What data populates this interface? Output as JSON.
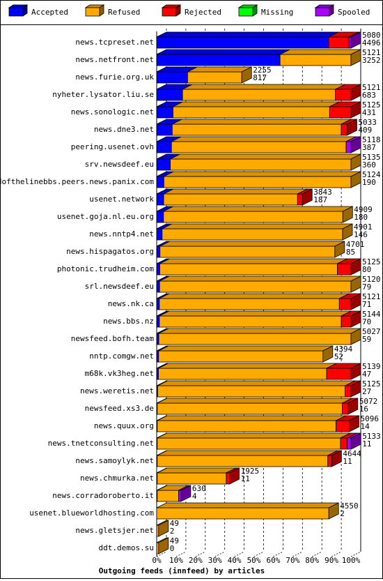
{
  "chart_data": {
    "type": "bar",
    "orientation": "horizontal",
    "stacked": true,
    "title": "Outgoing feeds (innfeed) by articles",
    "legend": [
      {
        "name": "Accepted",
        "color": "#0000ff"
      },
      {
        "name": "Refused",
        "color": "#ffaa00"
      },
      {
        "name": "Rejected",
        "color": "#ff0000"
      },
      {
        "name": "Missing",
        "color": "#00ff00"
      },
      {
        "name": "Spooled",
        "color": "#aa00ff"
      }
    ],
    "x_ticks": [
      "0%",
      "10%",
      "20%",
      "30%",
      "40%",
      "50%",
      "60%",
      "70%",
      "80%",
      "90%",
      "100%"
    ],
    "xlim": [
      0,
      100
    ],
    "grid": true,
    "legend_position": "top",
    "rows": [
      {
        "label": "news.tcpreset.net",
        "total": "5080",
        "accepted": "4496",
        "segments": {
          "accepted": 88.5,
          "refused": 0.0,
          "rejected": 10.5,
          "spooled": 1.0
        }
      },
      {
        "label": "news.netfront.net",
        "total": "5121",
        "accepted": "3252",
        "segments": {
          "accepted": 63.5,
          "refused": 36.5,
          "rejected": 0.0,
          "spooled": 0.0
        }
      },
      {
        "label": "news.furie.org.uk",
        "total": "2255",
        "accepted": "817",
        "segments": {
          "accepted": 15.9,
          "refused": 27.9,
          "rejected": 0.0,
          "spooled": 0.0
        }
      },
      {
        "label": "nyheter.lysator.liu.se",
        "total": "5121",
        "accepted": "683",
        "segments": {
          "accepted": 13.3,
          "refused": 78.7,
          "rejected": 8.0,
          "spooled": 0.0
        }
      },
      {
        "label": "news.sonologic.net",
        "total": "5125",
        "accepted": "431",
        "segments": {
          "accepted": 8.4,
          "refused": 80.6,
          "rejected": 11.0,
          "spooled": 0.0
        }
      },
      {
        "label": "news.dne3.net",
        "total": "5033",
        "accepted": "409",
        "segments": {
          "accepted": 8.0,
          "refused": 87.0,
          "rejected": 3.0,
          "spooled": 0.0
        }
      },
      {
        "label": "peering.usenet.ovh",
        "total": "5118",
        "accepted": "387",
        "segments": {
          "accepted": 7.6,
          "refused": 89.9,
          "rejected": 0.0,
          "spooled": 2.5
        }
      },
      {
        "label": "srv.newsdeef.eu",
        "total": "5135",
        "accepted": "360",
        "segments": {
          "accepted": 7.0,
          "refused": 93.0,
          "rejected": 0.0,
          "spooled": 0.0
        }
      },
      {
        "label": "endofthelinebbs.peers.news.panix.com",
        "total": "5124",
        "accepted": "190",
        "segments": {
          "accepted": 3.7,
          "refused": 96.3,
          "rejected": 0.0,
          "spooled": 0.0
        }
      },
      {
        "label": "usenet.network",
        "total": "3843",
        "accepted": "187",
        "segments": {
          "accepted": 3.6,
          "refused": 68.9,
          "rejected": 2.5,
          "spooled": 0.0
        }
      },
      {
        "label": "usenet.goja.nl.eu.org",
        "total": "4909",
        "accepted": "180",
        "segments": {
          "accepted": 3.5,
          "refused": 92.3,
          "rejected": 0.0,
          "spooled": 0.0
        }
      },
      {
        "label": "news.nntp4.net",
        "total": "4901",
        "accepted": "146",
        "segments": {
          "accepted": 2.8,
          "refused": 92.9,
          "rejected": 0.0,
          "spooled": 0.0
        }
      },
      {
        "label": "news.hispagatos.org",
        "total": "4701",
        "accepted": "85",
        "segments": {
          "accepted": 1.7,
          "refused": 90.0,
          "rejected": 0.0,
          "spooled": 0.0
        }
      },
      {
        "label": "photonic.trudheim.com",
        "total": "5125",
        "accepted": "80",
        "segments": {
          "accepted": 1.6,
          "refused": 91.4,
          "rejected": 7.0,
          "spooled": 0.0
        }
      },
      {
        "label": "srl.newsdeef.eu",
        "total": "5120",
        "accepted": "79",
        "segments": {
          "accepted": 1.5,
          "refused": 98.5,
          "rejected": 0.0,
          "spooled": 0.0
        }
      },
      {
        "label": "news.nk.ca",
        "total": "5121",
        "accepted": "71",
        "segments": {
          "accepted": 1.4,
          "refused": 92.6,
          "rejected": 6.0,
          "spooled": 0.0
        }
      },
      {
        "label": "news.bbs.nz",
        "total": "5144",
        "accepted": "70",
        "segments": {
          "accepted": 1.4,
          "refused": 93.6,
          "rejected": 5.0,
          "spooled": 0.0
        }
      },
      {
        "label": "newsfeed.bofh.team",
        "total": "5027",
        "accepted": "59",
        "segments": {
          "accepted": 1.1,
          "refused": 98.9,
          "rejected": 0.0,
          "spooled": 0.0
        }
      },
      {
        "label": "nntp.comgw.net",
        "total": "4394",
        "accepted": "52",
        "segments": {
          "accepted": 1.0,
          "refused": 84.6,
          "rejected": 0.0,
          "spooled": 0.0
        }
      },
      {
        "label": "m68k.vk3heg.net",
        "total": "5139",
        "accepted": "47",
        "segments": {
          "accepted": 0.9,
          "refused": 86.6,
          "rejected": 12.5,
          "spooled": 0.0
        }
      },
      {
        "label": "news.weretis.net",
        "total": "5125",
        "accepted": "27",
        "segments": {
          "accepted": 0.5,
          "refused": 96.5,
          "rejected": 3.0,
          "spooled": 0.0
        }
      },
      {
        "label": "newsfeed.xs3.de",
        "total": "5072",
        "accepted": "16",
        "segments": {
          "accepted": 0.3,
          "refused": 95.2,
          "rejected": 3.0,
          "spooled": 0.0
        }
      },
      {
        "label": "news.quux.org",
        "total": "5096",
        "accepted": "14",
        "segments": {
          "accepted": 0.3,
          "refused": 92.0,
          "rejected": 6.8,
          "spooled": 0.0
        }
      },
      {
        "label": "news.tnetconsulting.net",
        "total": "5133",
        "accepted": "11",
        "segments": {
          "accepted": 0.2,
          "refused": 94.3,
          "rejected": 3.5,
          "spooled": 2.0
        }
      },
      {
        "label": "news.samoylyk.net",
        "total": "4644",
        "accepted": "11",
        "segments": {
          "accepted": 0.2,
          "refused": 87.8,
          "rejected": 2.0,
          "spooled": 0.0
        }
      },
      {
        "label": "news.chmurka.net",
        "total": "1925",
        "accepted": "11",
        "segments": {
          "accepted": 0.2,
          "refused": 35.5,
          "rejected": 1.7,
          "spooled": 0.0
        }
      },
      {
        "label": "news.corradoroberto.it",
        "total": "630",
        "accepted": "4",
        "segments": {
          "accepted": 0.1,
          "refused": 11.0,
          "rejected": 0.0,
          "spooled": 1.2
        }
      },
      {
        "label": "usenet.blueworldhosting.com",
        "total": "4550",
        "accepted": "2",
        "segments": {
          "accepted": 0.0,
          "refused": 88.6,
          "rejected": 0.0,
          "spooled": 0.0
        }
      },
      {
        "label": "news.gletsjer.net",
        "total": "49",
        "accepted": "2",
        "segments": {
          "accepted": 0.0,
          "refused": 1.0,
          "rejected": 0.0,
          "spooled": 0.0
        }
      },
      {
        "label": "ddt.demos.su",
        "total": "49",
        "accepted": "0",
        "segments": {
          "accepted": 0.0,
          "refused": 1.0,
          "rejected": 0.0,
          "spooled": 0.0
        }
      }
    ]
  }
}
